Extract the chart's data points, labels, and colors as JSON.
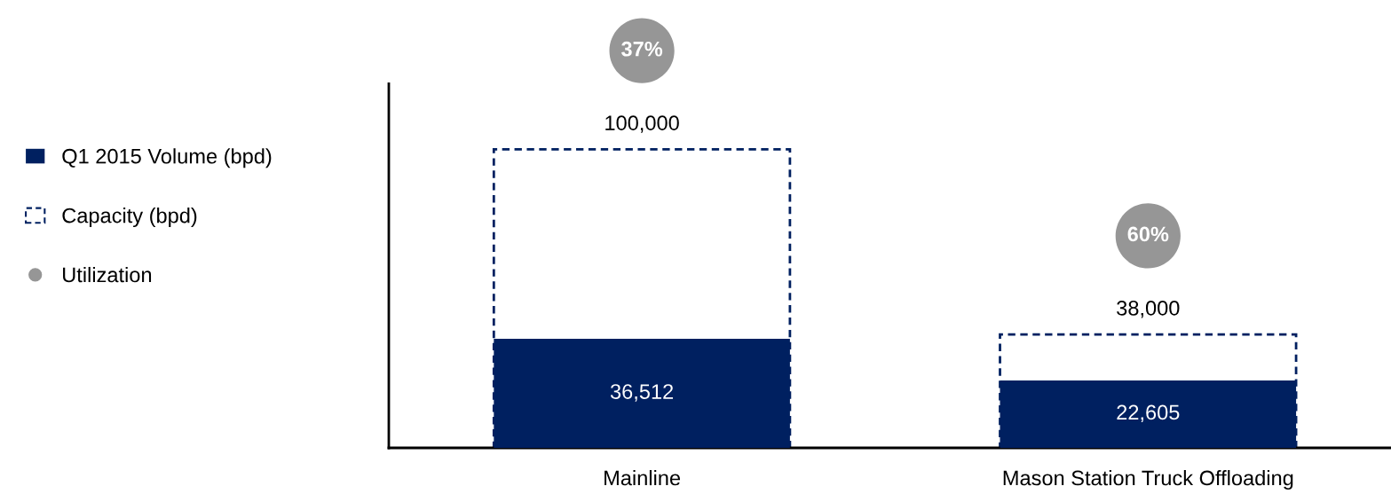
{
  "chart_data": {
    "type": "bar",
    "categories": [
      "Mainline",
      "Mason Station Truck Offloading"
    ],
    "series": [
      {
        "name": "Capacity (bpd)",
        "color": "#002060",
        "values": [
          100000,
          38000
        ],
        "line_style": "dashed",
        "value_labels": [
          "100,000",
          "38,000"
        ]
      },
      {
        "name": "Q1 2015 Volume (bpd)",
        "color": "#002060",
        "values": [
          36512,
          22605
        ],
        "value_labels": [
          "36,512",
          "22,605"
        ]
      }
    ],
    "annotations": [
      "37%",
      "60%",
      "Utilization"
    ],
    "tick_labels": "x",
    "legend": "left"
  }
}
